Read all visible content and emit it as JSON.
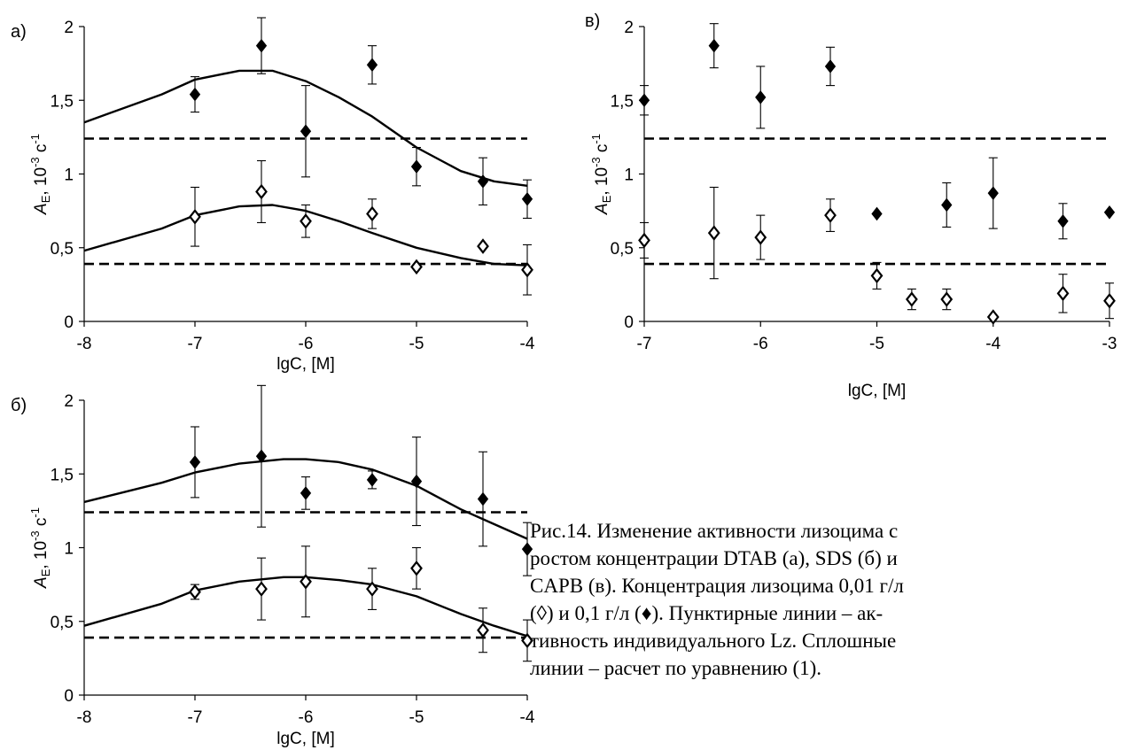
{
  "caption": "Рис.14. Изменение активности лизоцима с\nростом концентрации DTAB (а), SDS (б) и\nCAPB (в). Концентрация лизоцима 0,01 г/л\n(◊) и 0,1 г/л (♦). Пунктирные линии – ак-\nтивность индивидуального Lz. Сплошные\nлинии – расчет по уравнению (1).",
  "chart_data": [
    {
      "id": "a",
      "type": "scatter",
      "panel_label": "а)",
      "xlabel": "lgC, [M]",
      "ylabel": "A_E, 10^-3 с^-1",
      "ylabel_parts": {
        "symbol": "A",
        "sub": "E",
        "unit": ", 10",
        "exp": "-3",
        "unit2": " с",
        "exp2": "-1"
      },
      "xlim": [
        -8,
        -4
      ],
      "ylim": [
        0,
        2
      ],
      "xticks": [
        -8,
        -7,
        -6,
        -5,
        -4
      ],
      "xtick_labels": [
        "-8",
        "-7",
        "-6",
        "-5",
        "-4"
      ],
      "yticks": [
        0,
        0.5,
        1,
        1.5,
        2
      ],
      "ytick_labels": [
        "0",
        "0,5",
        "1",
        "1,5",
        "2"
      ],
      "grid": false,
      "series": [
        {
          "marker": "filled-diamond",
          "x": [
            -7,
            -6.4,
            -6,
            -5.4,
            -5,
            -4.4,
            -4
          ],
          "y": [
            1.54,
            1.87,
            1.29,
            1.74,
            1.05,
            0.95,
            0.83
          ],
          "err": [
            0.12,
            0.19,
            0.31,
            0.13,
            0.13,
            0.16,
            0.13
          ]
        },
        {
          "marker": "open-diamond",
          "x": [
            -7,
            -6.4,
            -6,
            -5.4,
            -5,
            -4.4,
            -4
          ],
          "y": [
            0.71,
            0.88,
            0.68,
            0.73,
            0.37,
            0.51,
            0.35
          ],
          "err": [
            0.2,
            0.21,
            0.11,
            0.1,
            0,
            0,
            0.17
          ]
        }
      ],
      "curves": [
        {
          "style": "solid",
          "x": [
            -8,
            -7.3,
            -7,
            -6.6,
            -6.3,
            -6,
            -5.7,
            -5.4,
            -5,
            -4.6,
            -4.3,
            -4
          ],
          "y": [
            1.35,
            1.54,
            1.64,
            1.7,
            1.7,
            1.63,
            1.52,
            1.39,
            1.18,
            1.02,
            0.95,
            0.92
          ]
        },
        {
          "style": "solid",
          "x": [
            -8,
            -7.3,
            -7,
            -6.6,
            -6.3,
            -6,
            -5.7,
            -5.4,
            -5,
            -4.6,
            -4.3,
            -4
          ],
          "y": [
            0.48,
            0.63,
            0.72,
            0.78,
            0.79,
            0.75,
            0.68,
            0.6,
            0.5,
            0.43,
            0.39,
            0.38
          ]
        },
        {
          "style": "dashed",
          "x": [
            -8,
            -4
          ],
          "y": [
            1.24,
            1.24
          ]
        },
        {
          "style": "dashed",
          "x": [
            -8,
            -4
          ],
          "y": [
            0.39,
            0.39
          ]
        }
      ]
    },
    {
      "id": "b",
      "type": "scatter",
      "panel_label": "б)",
      "xlabel": "lgC, [M]",
      "ylabel": "A_E, 10^-3 с^-1",
      "ylabel_parts": {
        "symbol": "A",
        "sub": "E",
        "unit": ", 10",
        "exp": "-3",
        "unit2": " с",
        "exp2": "-1"
      },
      "xlim": [
        -8,
        -4
      ],
      "ylim": [
        0,
        2
      ],
      "xticks": [
        -8,
        -7,
        -6,
        -5,
        -4
      ],
      "xtick_labels": [
        "-8",
        "-7",
        "-6",
        "-5",
        "-4"
      ],
      "yticks": [
        0,
        0.5,
        1,
        1.5,
        2
      ],
      "ytick_labels": [
        "0",
        "0,5",
        "1",
        "1,5",
        "2"
      ],
      "grid": false,
      "series": [
        {
          "marker": "filled-diamond",
          "x": [
            -7,
            -6.4,
            -6,
            -5.4,
            -5,
            -4.4,
            -4
          ],
          "y": [
            1.58,
            1.62,
            1.37,
            1.46,
            1.45,
            1.33,
            0.99
          ],
          "err": [
            0.24,
            0.48,
            0.11,
            0.06,
            0.3,
            0.32,
            0.18
          ]
        },
        {
          "marker": "open-diamond",
          "x": [
            -7,
            -6.4,
            -6,
            -5.4,
            -5,
            -4.4,
            -4
          ],
          "y": [
            0.7,
            0.72,
            0.77,
            0.72,
            0.86,
            0.44,
            0.37
          ],
          "err": [
            0.05,
            0.21,
            0.24,
            0.14,
            0.14,
            0.15,
            0.14
          ]
        }
      ],
      "curves": [
        {
          "style": "solid",
          "x": [
            -8,
            -7.3,
            -7,
            -6.6,
            -6.2,
            -6,
            -5.7,
            -5.4,
            -5,
            -4.6,
            -4.3,
            -4
          ],
          "y": [
            1.31,
            1.44,
            1.51,
            1.57,
            1.6,
            1.6,
            1.58,
            1.53,
            1.42,
            1.26,
            1.16,
            1.06
          ]
        },
        {
          "style": "solid",
          "x": [
            -8,
            -7.3,
            -7,
            -6.6,
            -6.2,
            -6,
            -5.7,
            -5.4,
            -5,
            -4.6,
            -4.3,
            -4
          ],
          "y": [
            0.47,
            0.62,
            0.71,
            0.77,
            0.8,
            0.8,
            0.78,
            0.75,
            0.67,
            0.55,
            0.47,
            0.4
          ]
        },
        {
          "style": "dashed",
          "x": [
            -8,
            -4
          ],
          "y": [
            1.24,
            1.24
          ]
        },
        {
          "style": "dashed",
          "x": [
            -8,
            -4
          ],
          "y": [
            0.39,
            0.39
          ]
        }
      ]
    },
    {
      "id": "v",
      "type": "scatter",
      "panel_label": "в)",
      "xlabel": "lgC, [M]",
      "ylabel": "A_E, 10^-3 с^-1",
      "ylabel_parts": {
        "symbol": "A",
        "sub": "E",
        "unit": ", 10",
        "exp": "-3",
        "unit2": " с",
        "exp2": "-1"
      },
      "xlim": [
        -7,
        -3
      ],
      "ylim": [
        0,
        2
      ],
      "xticks": [
        -7,
        -6,
        -5,
        -4,
        -3
      ],
      "xtick_labels": [
        "-7",
        "-6",
        "-5",
        "-4",
        "-3"
      ],
      "yticks": [
        0,
        0.5,
        1,
        1.5,
        2
      ],
      "ytick_labels": [
        "0",
        "0,5",
        "1",
        "1,5",
        "2"
      ],
      "grid": false,
      "series": [
        {
          "marker": "filled-diamond",
          "x": [
            -7,
            -6.4,
            -6,
            -5.4,
            -5,
            -4.4,
            -4,
            -3.4,
            -3
          ],
          "y": [
            1.5,
            1.87,
            1.52,
            1.73,
            0.73,
            0.79,
            0.87,
            0.68,
            0.74
          ],
          "err": [
            0.1,
            0.15,
            0.21,
            0.13,
            0,
            0.15,
            0.24,
            0.12,
            0
          ]
        },
        {
          "marker": "open-diamond",
          "x": [
            -7,
            -6.4,
            -6,
            -5.4,
            -5,
            -4.7,
            -4.4,
            -4,
            -3.4,
            -3
          ],
          "y": [
            0.55,
            0.6,
            0.57,
            0.72,
            0.31,
            0.15,
            0.15,
            0.03,
            0.19,
            0.14
          ],
          "err": [
            0.12,
            0.31,
            0.15,
            0.11,
            0.09,
            0.07,
            0.07,
            0,
            0.13,
            0.12
          ]
        }
      ],
      "curves": [
        {
          "style": "dashed",
          "x": [
            -7,
            -3
          ],
          "y": [
            1.24,
            1.24
          ]
        },
        {
          "style": "dashed",
          "x": [
            -7,
            -3
          ],
          "y": [
            0.39,
            0.39
          ]
        }
      ]
    }
  ]
}
